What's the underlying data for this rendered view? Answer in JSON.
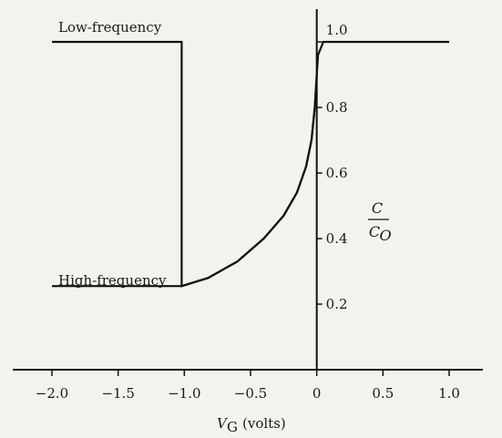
{
  "chart_data": {
    "type": "line",
    "title": "",
    "xlabel": "V_G (volts)",
    "ylabel": "C/C_O",
    "xlim": [
      -2.0,
      1.0
    ],
    "ylim": [
      0.0,
      1.0
    ],
    "x_ticks": [
      "−2.0",
      "−1.5",
      "−1.0",
      "−0.5",
      "0",
      "0.5",
      "1.0"
    ],
    "y_ticks": [
      "0.2",
      "0.4",
      "0.6",
      "0.8",
      "1.0"
    ],
    "series": [
      {
        "name": "Low-frequency",
        "x": [
          -2.0,
          -1.02,
          -1.02,
          -0.82,
          -0.6,
          -0.4,
          -0.25,
          -0.15,
          -0.08,
          -0.04,
          -0.015,
          0.0,
          0.01,
          0.05,
          1.0
        ],
        "y": [
          1.0,
          1.0,
          0.255,
          0.28,
          0.33,
          0.4,
          0.47,
          0.54,
          0.62,
          0.7,
          0.8,
          0.9,
          0.96,
          1.0,
          1.0
        ]
      },
      {
        "name": "High-frequency",
        "x": [
          -2.0,
          -1.02,
          -0.82,
          -0.6,
          -0.4,
          -0.25,
          -0.15,
          -0.08,
          -0.04,
          -0.015,
          0.0
        ],
        "y": [
          0.255,
          0.255,
          0.28,
          0.33,
          0.4,
          0.47,
          0.54,
          0.62,
          0.7,
          0.8,
          0.9
        ]
      }
    ],
    "annotations": {
      "low_freq_label": "Low-frequency",
      "high_freq_label": "High-frequency",
      "ratio_num": "C",
      "ratio_den": "C",
      "ratio_den_sub": "O",
      "xlabel_main": "V",
      "xlabel_sub": "G",
      "xlabel_unit": "(volts)"
    },
    "grid": false,
    "legend": "none"
  }
}
